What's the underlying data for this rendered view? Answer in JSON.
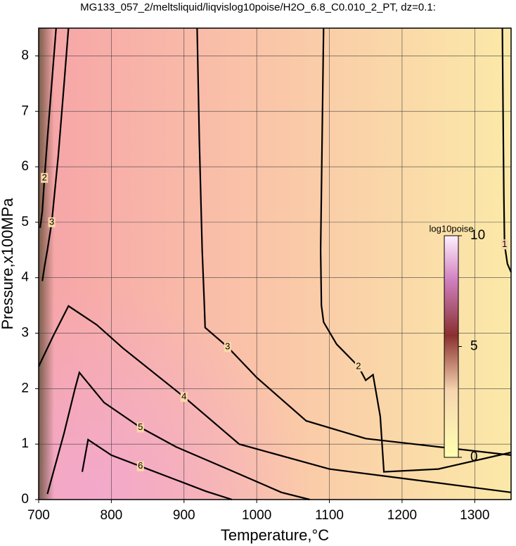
{
  "chart_data": {
    "type": "contour",
    "title": "MG133_057_2/meltsliquid/liqvislog10poise/H2O_6.8_C0.010_2_PT, dz=0.1:",
    "x_label": "Temperature,°C",
    "y_label": "Pressure,x100MPa",
    "xlim": [
      700,
      1350
    ],
    "ylim": [
      0,
      8.5
    ],
    "xticks": [
      700,
      800,
      900,
      1000,
      1100,
      1200,
      1300
    ],
    "yticks": [
      0,
      1,
      2,
      3,
      4,
      5,
      6,
      7,
      8
    ],
    "grid": true,
    "contours": [
      {
        "level": 1,
        "x": [
          1338,
          1339,
          1340,
          1341,
          1345,
          1350
        ],
        "y": [
          8.5,
          7,
          5.5,
          4.6,
          4.25,
          4.1
        ]
      },
      {
        "level": 2,
        "x": [
          1092,
          1090,
          1088,
          1089,
          1092,
          1110,
          1140,
          1150,
          1160,
          1170,
          1175,
          1250,
          1350
        ],
        "y": [
          8.5,
          6.5,
          4.5,
          3.5,
          3.2,
          2.8,
          2.4,
          2.15,
          2.25,
          1.5,
          0.5,
          0.55,
          0.85
        ]
      },
      {
        "level": 3,
        "x": [
          918,
          921,
          925,
          928,
          929,
          960,
          1000,
          1068,
          1150,
          1250,
          1350
        ],
        "y": [
          8.5,
          6.5,
          4.5,
          3.5,
          3.1,
          2.75,
          2.2,
          1.42,
          1.1,
          0.95,
          0.8
        ]
      },
      {
        "level": 4,
        "x": [
          700,
          720,
          741,
          780,
          816,
          900,
          976,
          1100,
          1250,
          1350
        ],
        "y": [
          2.4,
          2.95,
          3.49,
          3.15,
          2.73,
          1.85,
          1.0,
          0.55,
          0.3,
          0.13
        ]
      },
      {
        "level": 5,
        "x": [
          712,
          735,
          750,
          756,
          790,
          840,
          889,
          960,
          1034,
          1073
        ],
        "y": [
          0.1,
          1.2,
          2.0,
          2.29,
          1.75,
          1.3,
          0.95,
          0.55,
          0.13,
          0
        ]
      },
      {
        "level": 6,
        "x": [
          760,
          768,
          800,
          840,
          884,
          930,
          966
        ],
        "y": [
          0.5,
          1.08,
          0.8,
          0.6,
          0.38,
          0.15,
          0
        ]
      },
      {
        "level": 3,
        "x": [
          741,
          735,
          727,
          718,
          712,
          708,
          705
        ],
        "y": [
          8.5,
          7.5,
          6.2,
          5.0,
          4.5,
          4.2,
          3.94
        ]
      },
      {
        "level": 2,
        "x": [
          724,
          718,
          712,
          708,
          705,
          702
        ],
        "y": [
          8.5,
          7.5,
          6.5,
          5.8,
          5.2,
          4.9
        ]
      }
    ],
    "colorbar": {
      "label": "log10poise",
      "lim": [
        0,
        10
      ],
      "ticks": [
        0,
        5,
        10
      ]
    }
  }
}
